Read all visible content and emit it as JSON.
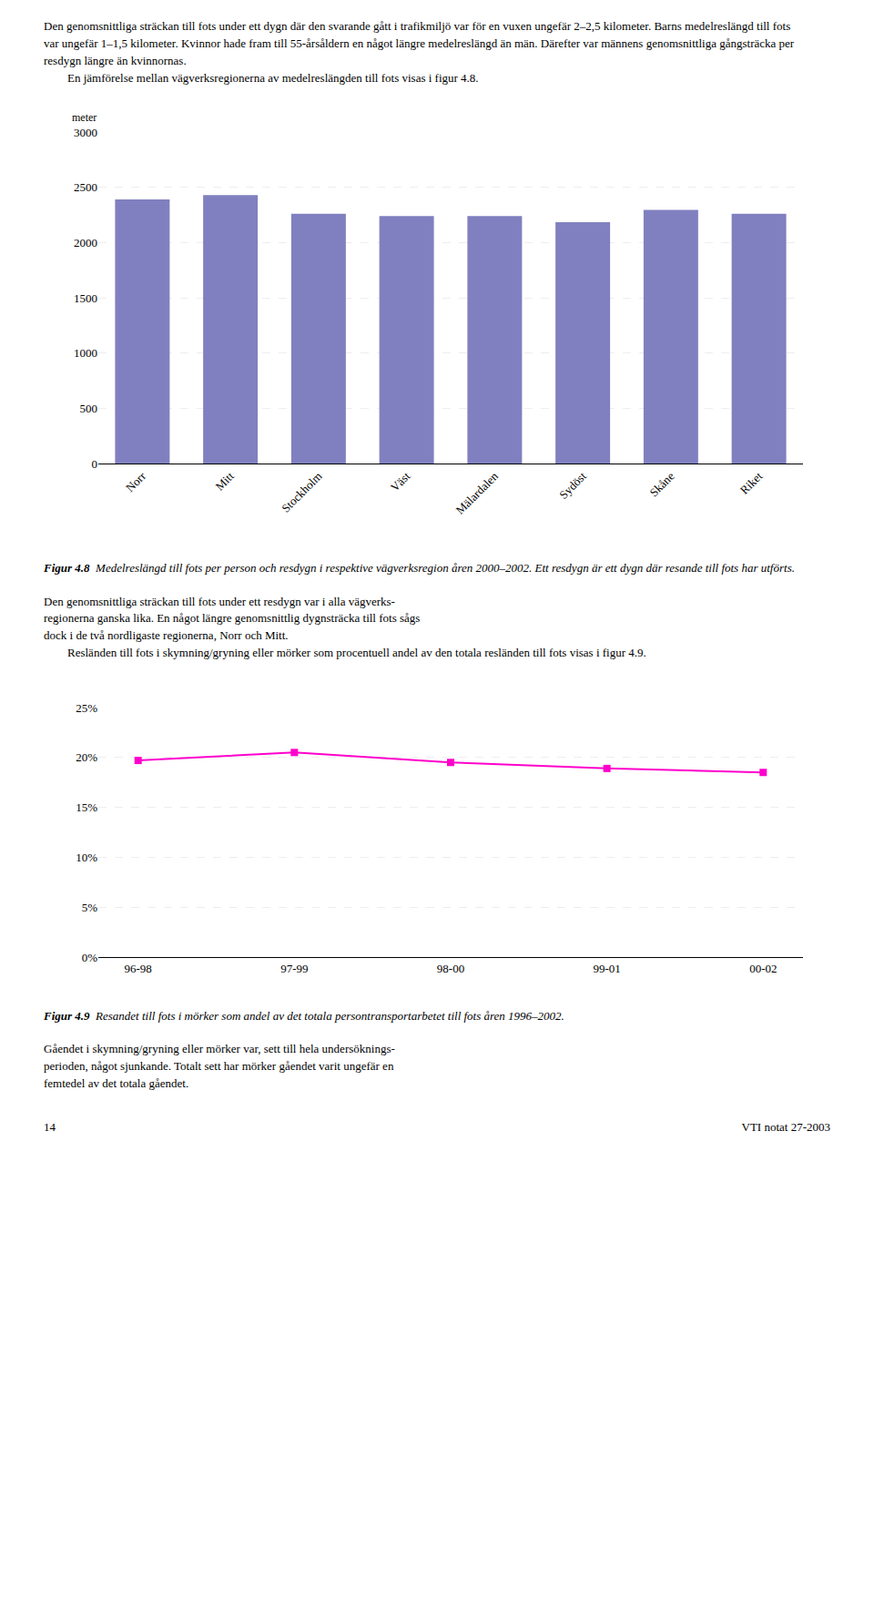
{
  "chart_data": [
    {
      "type": "bar",
      "title": "Figur 4.8",
      "subtitle": "Medelreslängd till fots per person och resdygn i respektive vägverksregion åren 2000–2002. Ett resdygn är ett dygn där resande till fots har utförts.",
      "annotations": [
        "Den genomsnittliga sträckan till fots under ett dygn där den svarande gått i trafikmiljö var för en vuxen ungefär 2–2,5 kilometer. Barns medelreslängd till fots",
        "var ungefär 1–1,5 kilometer. Kvinnor hade fram till 55-årsåldern en något längre medelreslängd än män. Därefter var männens genomsnittliga gångsträcka per",
        "resdygn längre än kvinnornas.",
        "En jämförelse mellan vägverksregionerna av medelreslängden till fots visas i figur 4.8."
      ],
      "ylabel": "meter",
      "categories": [
        "Norr",
        "Mitt",
        "Stockholm",
        "Väst",
        "Mälardalen",
        "Sydöst",
        "Skåne",
        "Riket"
      ],
      "values": [
        2390,
        2430,
        2260,
        2240,
        2240,
        2185,
        2295,
        2260
      ],
      "color": "#8080c0",
      "ylim": [
        0,
        3000
      ],
      "yticks": [
        0,
        500,
        1000,
        1500,
        2000,
        2500,
        3000
      ],
      "grid": true
    },
    {
      "type": "line",
      "title": "Figur 4.9",
      "subtitle": "Resandet till fots i mörker som andel av det totala persontransportarbetet till fots åren 1996–2002.",
      "annotations": [
        "Den genomsnittliga sträckan till fots under ett resdygn var i alla vägverks-",
        "regionerna ganska lika. En något längre genomsnittlig dygnsträcka till fots sågs",
        "dock i de två nordligaste regionerna, Norr och Mitt.",
        "Resländen till fots i skymning/gryning eller mörker som procentuell andel av den totala resländen till fots visas i figur 4.9.",
        "Gåendet i skymning/gryning eller mörker var, sett till hela undersöknings-",
        "perioden, något sjunkande. Totalt sett har mörker gåendet varit ungefär en",
        "femtedel av det totala gåendet.",
        "14",
        "VTI notat 27-2003"
      ],
      "categories": [
        "96-98",
        "97-99",
        "98-00",
        "99-01",
        "00-02"
      ],
      "values": [
        0.197,
        0.205,
        0.195,
        0.189,
        0.185
      ],
      "color": "#ff00cc",
      "marker": "square",
      "ylim": [
        0,
        0.25
      ],
      "yticks": [
        {
          "value": 0,
          "label": "0%"
        },
        {
          "value": 0.05,
          "label": "5%"
        },
        {
          "value": 0.1,
          "label": "10%"
        },
        {
          "value": 0.15,
          "label": "15%"
        },
        {
          "value": 0.2,
          "label": "20%"
        },
        {
          "value": 0.25,
          "label": "25%"
        }
      ],
      "grid": true
    }
  ]
}
